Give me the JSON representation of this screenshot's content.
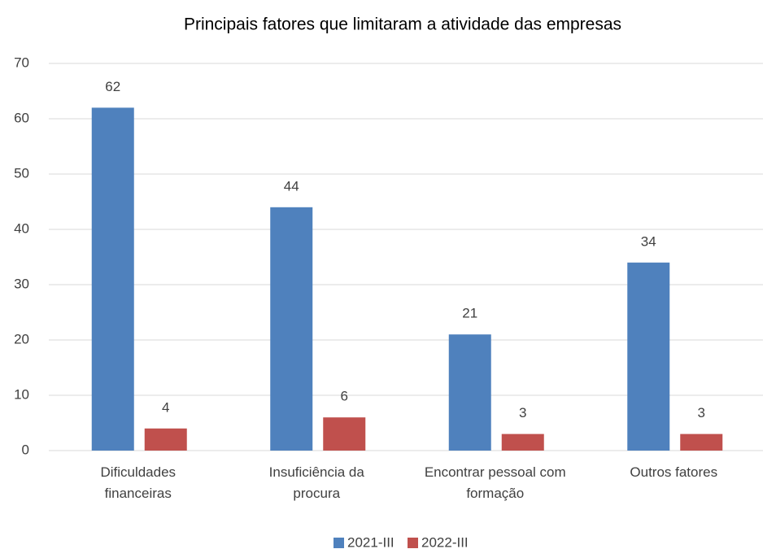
{
  "chart_data": {
    "type": "bar",
    "title": "Principais fatores que limitaram a atividade das empresas",
    "categories": [
      "Dificuldades financeiras",
      "Insuficiência da procura",
      "Encontrar pessoal com formação",
      "Outros fatores"
    ],
    "series": [
      {
        "name": "2021-III",
        "color": "#4f81bd",
        "values": [
          62,
          44,
          21,
          34
        ]
      },
      {
        "name": "2022-III",
        "color": "#c0504d",
        "values": [
          4,
          6,
          3,
          3
        ]
      }
    ],
    "ylim": [
      0,
      70
    ],
    "yticks": [
      0,
      10,
      20,
      30,
      40,
      50,
      60,
      70
    ],
    "grid": true,
    "legend": "bottom"
  }
}
